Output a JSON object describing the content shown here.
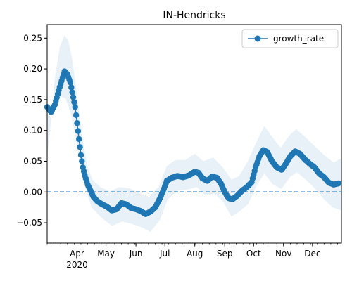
{
  "chart_data": {
    "type": "line",
    "title": "IN-Hendricks",
    "xlabel": "",
    "ylabel": "",
    "x_start": "2020-03-01",
    "x_end": "2020-12-31",
    "ylim": [
      -0.083,
      0.272
    ],
    "grid": false,
    "legend_position": "top-right",
    "colors": {
      "series": "#1f77b4",
      "band": "#1f77b4",
      "zero_line": "#1f77b4"
    },
    "yticks": [
      -0.05,
      0.0,
      0.05,
      0.1,
      0.15,
      0.2,
      0.25
    ],
    "ytick_labels": [
      "−0.05",
      "0.00",
      "0.05",
      "0.10",
      "0.15",
      "0.20",
      "0.25"
    ],
    "xtick_labels": [
      {
        "date": "2020-04-01",
        "label": "Apr",
        "sublabel": "2020"
      },
      {
        "date": "2020-05-01",
        "label": "May"
      },
      {
        "date": "2020-06-01",
        "label": "Jun"
      },
      {
        "date": "2020-07-01",
        "label": "Jul"
      },
      {
        "date": "2020-08-01",
        "label": "Aug"
      },
      {
        "date": "2020-09-01",
        "label": "Sep"
      },
      {
        "date": "2020-10-01",
        "label": "Oct"
      },
      {
        "date": "2020-11-01",
        "label": "Nov"
      },
      {
        "date": "2020-12-01",
        "label": "Dec"
      }
    ],
    "reference_line": {
      "y": 0.0,
      "style": "dashed"
    },
    "series": [
      {
        "name": "growth_rate",
        "marker": "circle",
        "points": [
          {
            "date": "2020-03-01",
            "y": 0.138
          },
          {
            "date": "2020-03-05",
            "y": 0.13
          },
          {
            "date": "2020-03-09",
            "y": 0.142
          },
          {
            "date": "2020-03-13",
            "y": 0.165
          },
          {
            "date": "2020-03-17",
            "y": 0.186
          },
          {
            "date": "2020-03-19",
            "y": 0.196
          },
          {
            "date": "2020-03-22",
            "y": 0.191
          },
          {
            "date": "2020-03-25",
            "y": 0.178
          },
          {
            "date": "2020-03-27",
            "y": 0.162
          },
          {
            "date": "2020-03-30",
            "y": 0.138
          },
          {
            "date": "2020-04-01",
            "y": 0.112
          },
          {
            "date": "2020-04-03",
            "y": 0.086
          },
          {
            "date": "2020-04-05",
            "y": 0.06
          },
          {
            "date": "2020-04-07",
            "y": 0.04
          },
          {
            "date": "2020-04-09",
            "y": 0.027
          },
          {
            "date": "2020-04-12",
            "y": 0.012
          },
          {
            "date": "2020-04-15",
            "y": 0.002
          },
          {
            "date": "2020-04-18",
            "y": -0.008
          },
          {
            "date": "2020-04-22",
            "y": -0.015
          },
          {
            "date": "2020-04-27",
            "y": -0.02
          },
          {
            "date": "2020-05-02",
            "y": -0.024
          },
          {
            "date": "2020-05-07",
            "y": -0.03
          },
          {
            "date": "2020-05-12",
            "y": -0.028
          },
          {
            "date": "2020-05-17",
            "y": -0.018
          },
          {
            "date": "2020-05-22",
            "y": -0.02
          },
          {
            "date": "2020-05-27",
            "y": -0.026
          },
          {
            "date": "2020-06-01",
            "y": -0.028
          },
          {
            "date": "2020-06-06",
            "y": -0.031
          },
          {
            "date": "2020-06-11",
            "y": -0.036
          },
          {
            "date": "2020-06-16",
            "y": -0.032
          },
          {
            "date": "2020-06-21",
            "y": -0.025
          },
          {
            "date": "2020-06-26",
            "y": -0.01
          },
          {
            "date": "2020-06-30",
            "y": 0.005
          },
          {
            "date": "2020-07-03",
            "y": 0.018
          },
          {
            "date": "2020-07-08",
            "y": 0.023
          },
          {
            "date": "2020-07-14",
            "y": 0.026
          },
          {
            "date": "2020-07-20",
            "y": 0.024
          },
          {
            "date": "2020-07-26",
            "y": 0.027
          },
          {
            "date": "2020-08-01",
            "y": 0.033
          },
          {
            "date": "2020-08-05",
            "y": 0.031
          },
          {
            "date": "2020-08-09",
            "y": 0.022
          },
          {
            "date": "2020-08-14",
            "y": 0.018
          },
          {
            "date": "2020-08-19",
            "y": 0.025
          },
          {
            "date": "2020-08-24",
            "y": 0.023
          },
          {
            "date": "2020-08-28",
            "y": 0.014
          },
          {
            "date": "2020-09-01",
            "y": 0.0
          },
          {
            "date": "2020-09-05",
            "y": -0.01
          },
          {
            "date": "2020-09-09",
            "y": -0.012
          },
          {
            "date": "2020-09-14",
            "y": -0.006
          },
          {
            "date": "2020-09-19",
            "y": 0.002
          },
          {
            "date": "2020-09-24",
            "y": 0.008
          },
          {
            "date": "2020-09-29",
            "y": 0.016
          },
          {
            "date": "2020-10-03",
            "y": 0.04
          },
          {
            "date": "2020-10-07",
            "y": 0.058
          },
          {
            "date": "2020-10-11",
            "y": 0.068
          },
          {
            "date": "2020-10-15",
            "y": 0.065
          },
          {
            "date": "2020-10-20",
            "y": 0.05
          },
          {
            "date": "2020-10-25",
            "y": 0.04
          },
          {
            "date": "2020-10-30",
            "y": 0.036
          },
          {
            "date": "2020-11-03",
            "y": 0.045
          },
          {
            "date": "2020-11-08",
            "y": 0.058
          },
          {
            "date": "2020-11-13",
            "y": 0.066
          },
          {
            "date": "2020-11-18",
            "y": 0.062
          },
          {
            "date": "2020-11-23",
            "y": 0.053
          },
          {
            "date": "2020-11-28",
            "y": 0.046
          },
          {
            "date": "2020-12-03",
            "y": 0.04
          },
          {
            "date": "2020-12-08",
            "y": 0.03
          },
          {
            "date": "2020-12-13",
            "y": 0.024
          },
          {
            "date": "2020-12-18",
            "y": 0.015
          },
          {
            "date": "2020-12-23",
            "y": 0.012
          },
          {
            "date": "2020-12-28",
            "y": 0.014
          }
        ],
        "band_upper": [
          {
            "date": "2020-03-01",
            "y": 0.055
          },
          {
            "date": "2020-03-04",
            "y": 0.1
          },
          {
            "date": "2020-03-09",
            "y": 0.185
          },
          {
            "date": "2020-03-14",
            "y": 0.235
          },
          {
            "date": "2020-03-19",
            "y": 0.255
          },
          {
            "date": "2020-03-23",
            "y": 0.245
          },
          {
            "date": "2020-03-27",
            "y": 0.215
          },
          {
            "date": "2020-03-31",
            "y": 0.17
          },
          {
            "date": "2020-04-04",
            "y": 0.12
          },
          {
            "date": "2020-04-08",
            "y": 0.075
          },
          {
            "date": "2020-04-12",
            "y": 0.04
          },
          {
            "date": "2020-04-17",
            "y": 0.02
          },
          {
            "date": "2020-04-25",
            "y": 0.008
          },
          {
            "date": "2020-05-05",
            "y": 0.001
          },
          {
            "date": "2020-05-15",
            "y": 0.008
          },
          {
            "date": "2020-05-25",
            "y": 0.006
          },
          {
            "date": "2020-06-05",
            "y": -0.002
          },
          {
            "date": "2020-06-15",
            "y": -0.008
          },
          {
            "date": "2020-06-25",
            "y": 0.01
          },
          {
            "date": "2020-07-03",
            "y": 0.042
          },
          {
            "date": "2020-07-12",
            "y": 0.052
          },
          {
            "date": "2020-07-22",
            "y": 0.052
          },
          {
            "date": "2020-08-01",
            "y": 0.062
          },
          {
            "date": "2020-08-10",
            "y": 0.05
          },
          {
            "date": "2020-08-20",
            "y": 0.056
          },
          {
            "date": "2020-08-30",
            "y": 0.04
          },
          {
            "date": "2020-09-08",
            "y": 0.02
          },
          {
            "date": "2020-09-16",
            "y": 0.026
          },
          {
            "date": "2020-09-25",
            "y": 0.05
          },
          {
            "date": "2020-10-04",
            "y": 0.082
          },
          {
            "date": "2020-10-12",
            "y": 0.107
          },
          {
            "date": "2020-10-20",
            "y": 0.09
          },
          {
            "date": "2020-10-29",
            "y": 0.072
          },
          {
            "date": "2020-11-07",
            "y": 0.092
          },
          {
            "date": "2020-11-14",
            "y": 0.102
          },
          {
            "date": "2020-11-23",
            "y": 0.09
          },
          {
            "date": "2020-12-03",
            "y": 0.075
          },
          {
            "date": "2020-12-13",
            "y": 0.06
          },
          {
            "date": "2020-12-23",
            "y": 0.048
          },
          {
            "date": "2020-12-31",
            "y": 0.055
          }
        ],
        "band_lower": [
          {
            "date": "2020-03-01",
            "y": 0.128
          },
          {
            "date": "2020-03-05",
            "y": 0.122
          },
          {
            "date": "2020-03-10",
            "y": 0.14
          },
          {
            "date": "2020-03-15",
            "y": 0.155
          },
          {
            "date": "2020-03-20",
            "y": 0.152
          },
          {
            "date": "2020-03-25",
            "y": 0.13
          },
          {
            "date": "2020-03-29",
            "y": 0.1
          },
          {
            "date": "2020-04-02",
            "y": 0.065
          },
          {
            "date": "2020-04-06",
            "y": 0.03
          },
          {
            "date": "2020-04-10",
            "y": 0.005
          },
          {
            "date": "2020-04-16",
            "y": -0.025
          },
          {
            "date": "2020-04-25",
            "y": -0.04
          },
          {
            "date": "2020-05-07",
            "y": -0.055
          },
          {
            "date": "2020-05-18",
            "y": -0.048
          },
          {
            "date": "2020-05-28",
            "y": -0.052
          },
          {
            "date": "2020-06-08",
            "y": -0.058
          },
          {
            "date": "2020-06-16",
            "y": -0.065
          },
          {
            "date": "2020-06-26",
            "y": -0.045
          },
          {
            "date": "2020-07-04",
            "y": -0.012
          },
          {
            "date": "2020-07-14",
            "y": 0.002
          },
          {
            "date": "2020-07-25",
            "y": 0.004
          },
          {
            "date": "2020-08-03",
            "y": 0.008
          },
          {
            "date": "2020-08-12",
            "y": -0.006
          },
          {
            "date": "2020-08-21",
            "y": -0.002
          },
          {
            "date": "2020-08-30",
            "y": -0.015
          },
          {
            "date": "2020-09-08",
            "y": -0.04
          },
          {
            "date": "2020-09-16",
            "y": -0.032
          },
          {
            "date": "2020-09-25",
            "y": -0.02
          },
          {
            "date": "2020-10-04",
            "y": 0.01
          },
          {
            "date": "2020-10-12",
            "y": 0.03
          },
          {
            "date": "2020-10-21",
            "y": 0.012
          },
          {
            "date": "2020-10-30",
            "y": 0.005
          },
          {
            "date": "2020-11-08",
            "y": 0.025
          },
          {
            "date": "2020-11-15",
            "y": 0.032
          },
          {
            "date": "2020-11-24",
            "y": 0.02
          },
          {
            "date": "2020-12-04",
            "y": 0.005
          },
          {
            "date": "2020-12-13",
            "y": -0.012
          },
          {
            "date": "2020-12-22",
            "y": -0.025
          },
          {
            "date": "2020-12-31",
            "y": -0.03
          }
        ]
      }
    ]
  }
}
